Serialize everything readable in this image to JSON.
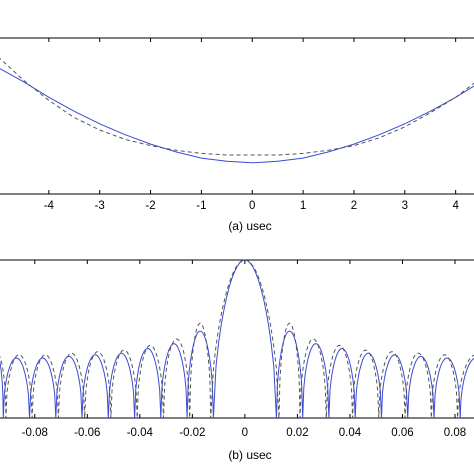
{
  "chart_data": [
    {
      "type": "line",
      "caption": "(a)  usec",
      "xlim": [
        -5,
        4.4
      ],
      "ylim": [
        0,
        1
      ],
      "x_ticks": [
        "-4",
        "-3",
        "-2",
        "-1",
        "0",
        "1",
        "2",
        "3",
        "4"
      ],
      "x_tick_values": [
        -4,
        -3,
        -2,
        -1,
        0,
        1,
        2,
        3,
        4
      ],
      "grid": false,
      "series": [
        {
          "style": "solid",
          "color": "#3a4bd6",
          "x": [
            -5,
            -4.5,
            -4,
            -3.5,
            -3,
            -2.5,
            -2,
            -1.5,
            -1,
            -0.5,
            0,
            0.5,
            1,
            1.5,
            2,
            2.5,
            3,
            3.5,
            4,
            4.4
          ],
          "y": [
            0.81,
            0.72,
            0.62,
            0.53,
            0.45,
            0.38,
            0.32,
            0.27,
            0.23,
            0.21,
            0.2,
            0.21,
            0.23,
            0.27,
            0.32,
            0.38,
            0.45,
            0.53,
            0.62,
            0.7
          ]
        },
        {
          "style": "dashed",
          "color": "#555555",
          "x": [
            -5,
            -4.5,
            -4,
            -3.5,
            -3,
            -2.5,
            -2,
            -1.5,
            -1,
            -0.5,
            0,
            0.5,
            1,
            1.5,
            2,
            2.5,
            3,
            3.5,
            4,
            4.4
          ],
          "y": [
            0.88,
            0.73,
            0.6,
            0.49,
            0.41,
            0.35,
            0.31,
            0.28,
            0.26,
            0.25,
            0.25,
            0.25,
            0.26,
            0.28,
            0.31,
            0.36,
            0.43,
            0.52,
            0.62,
            0.72
          ]
        }
      ]
    },
    {
      "type": "line",
      "caption": "(b)  usec",
      "xlim": [
        -0.094,
        0.088
      ],
      "ylim": [
        0,
        1
      ],
      "x_ticks": [
        "-0.08",
        "-0.06",
        "-0.04",
        "-0.02",
        "0",
        "0.02",
        "0.04",
        "0.06",
        "0.08"
      ],
      "x_tick_values": [
        -0.08,
        -0.06,
        -0.04,
        -0.02,
        0,
        0.02,
        0.04,
        0.06,
        0.08
      ],
      "grid": false,
      "mainlobe_half_width": 0.012,
      "sidelobe_period": 0.01,
      "series": [
        {
          "style": "solid",
          "color": "#3a4bd6",
          "nulls": [
            -0.092,
            -0.082,
            -0.072,
            -0.062,
            -0.052,
            -0.042,
            -0.032,
            -0.022,
            -0.012,
            0.012,
            0.022,
            0.032,
            0.042,
            0.052,
            0.062,
            0.072,
            0.082
          ],
          "sidelobe_peaks_x": [
            -0.087,
            -0.077,
            -0.067,
            -0.057,
            -0.047,
            -0.037,
            -0.027,
            -0.017,
            0.017,
            0.027,
            0.037,
            0.047,
            0.057,
            0.067,
            0.077,
            0.087
          ],
          "sidelobe_peaks_y": [
            0.38,
            0.38,
            0.39,
            0.4,
            0.41,
            0.44,
            0.47,
            0.55,
            0.55,
            0.47,
            0.44,
            0.41,
            0.4,
            0.39,
            0.38,
            0.38
          ],
          "mainlobe_peak": 1.0
        },
        {
          "style": "dashed",
          "color": "#555555",
          "nulls": [
            -0.091,
            -0.081,
            -0.071,
            -0.061,
            -0.051,
            -0.041,
            -0.031,
            -0.021,
            -0.013,
            0.013,
            0.021,
            0.031,
            0.041,
            0.051,
            0.061,
            0.071,
            0.081
          ],
          "sidelobe_peaks_x": [
            -0.086,
            -0.076,
            -0.066,
            -0.056,
            -0.046,
            -0.036,
            -0.026,
            -0.017,
            0.017,
            0.026,
            0.036,
            0.046,
            0.056,
            0.066,
            0.076,
            0.086
          ],
          "sidelobe_peaks_y": [
            0.4,
            0.4,
            0.41,
            0.42,
            0.43,
            0.46,
            0.5,
            0.6,
            0.6,
            0.5,
            0.46,
            0.43,
            0.42,
            0.41,
            0.4,
            0.4
          ],
          "mainlobe_peak": 1.0
        }
      ]
    }
  ]
}
